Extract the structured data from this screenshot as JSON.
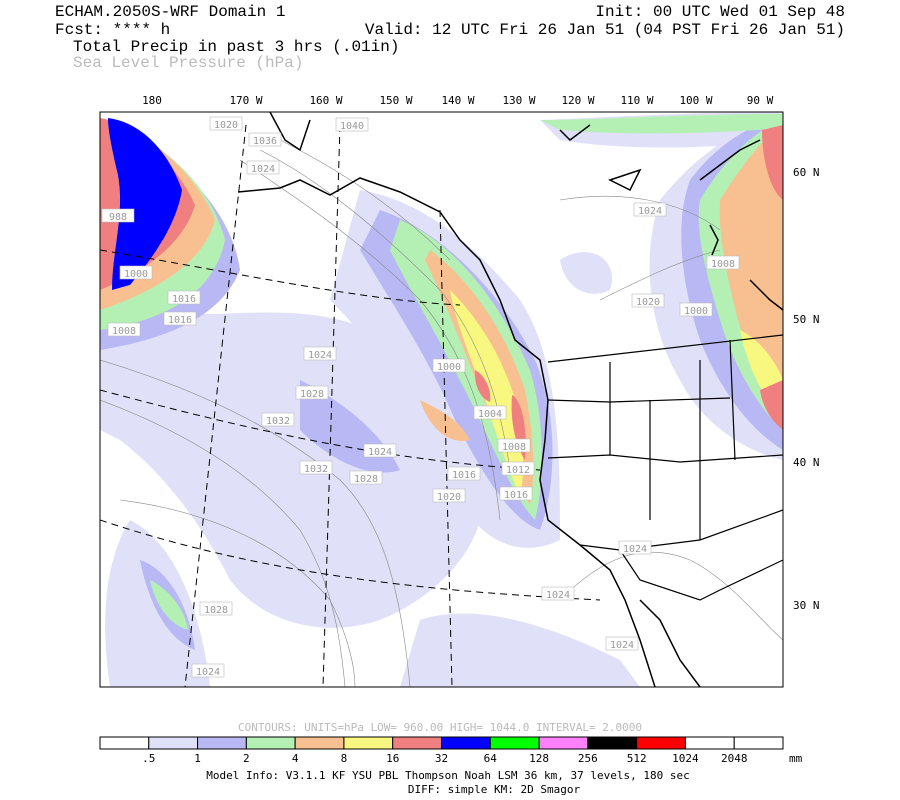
{
  "header": {
    "left_lines": [
      "ECHAM.2050S-WRF Domain 1",
      "Fcst: **** h",
      "Total Precip in past 3 hrs (.01in)",
      "Sea Level Pressure (hPa)"
    ],
    "right_lines": [
      "Init: 00 UTC Wed 01 Sep 48",
      "Valid: 12 UTC Fri 26 Jan 51 (04 PST Fri 26 Jan 51)"
    ]
  },
  "map": {
    "longitude_labels": [
      "180",
      "170 W",
      "160 W",
      "150 W",
      "140 W",
      "130 W",
      "120 W",
      "110 W",
      "100 W",
      "90 W"
    ],
    "latitude_labels": [
      "60 N",
      "50 N",
      "40 N",
      "30 N"
    ],
    "isobar_labels": [
      "1020",
      "1036",
      "1024",
      "1040",
      "1024",
      "1008",
      "1020",
      "1000",
      "1000",
      "1016",
      "1016",
      "1008",
      "1024",
      "1028",
      "1032",
      "1032",
      "1028",
      "1024",
      "1000",
      "1004",
      "1008",
      "1012",
      "1016",
      "1016",
      "1020",
      "1024",
      "1024",
      "1024",
      "1028",
      "1024",
      "988"
    ]
  },
  "contour_info": "CONTOURS:  UNITS=hPa  LOW=  960.00    HIGH=  1044.0    INTERVAL=   2.0000",
  "colorbar": {
    "colors": [
      "#ffffff",
      "#e0e0f8",
      "#b8b8f4",
      "#b4f0b4",
      "#f8c090",
      "#f8f880",
      "#f08080",
      "#0000ff",
      "#00ff00",
      "#ff80ff",
      "#000000",
      "#ff0000",
      "#ffffff",
      "#ffffff"
    ],
    "labels": [
      ".5",
      "1",
      "2",
      "4",
      "8",
      "16",
      "32",
      "64",
      "128",
      "256",
      "512",
      "1024",
      "2048"
    ],
    "unit": "mm"
  },
  "footer": [
    "Model Info: V3.1.1    KF      YSU PBL   Thompson     Noah LSM   36 km,    37 levels,  180 sec",
    "DIFF: simple KM: 2D Smagor"
  ]
}
